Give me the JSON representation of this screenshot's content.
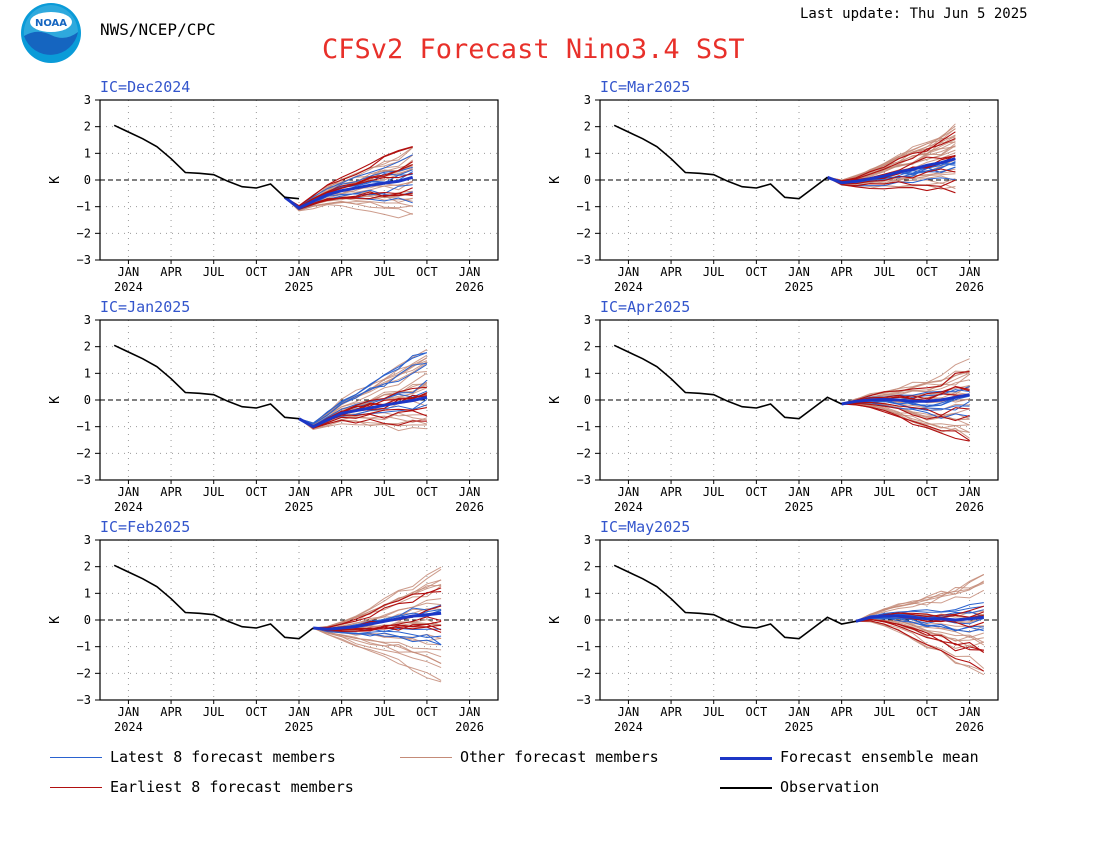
{
  "header": {
    "org": "NWS/NCEP/CPC",
    "last_update": "Last update: Thu Jun  5 2025",
    "title": "CFSv2 Forecast Nino3.4 SST",
    "logo_text": "NOAA"
  },
  "colors": {
    "latest": "#2a62cf",
    "other": "#c48b78",
    "mean": "#1c36c6",
    "earliest": "#b10f0f",
    "obs": "#000000",
    "title": "#e8302a",
    "panel_label": "#3355cc"
  },
  "legend": {
    "latest": "Latest 8 forecast members",
    "other": "Other forecast members",
    "mean": "Forecast ensemble mean",
    "earliest": "Earliest 8 forecast members",
    "obs": "Observation"
  },
  "chart_data": {
    "type": "line",
    "ylabel": "K",
    "ylim": [
      -3,
      3
    ],
    "yticks": [
      3,
      2,
      1,
      0,
      -1,
      -2,
      -3
    ],
    "xlim_months": [
      "Nov 2023",
      "Mar 2026"
    ],
    "xticks": [
      {
        "month": "Jan 2024",
        "label": "JAN",
        "year": "2024"
      },
      {
        "month": "Apr 2024",
        "label": "APR",
        "year": ""
      },
      {
        "month": "Jul 2024",
        "label": "JUL",
        "year": ""
      },
      {
        "month": "Oct 2024",
        "label": "OCT",
        "year": ""
      },
      {
        "month": "Jan 2025",
        "label": "JAN",
        "year": "2025"
      },
      {
        "month": "Apr 2025",
        "label": "APR",
        "year": ""
      },
      {
        "month": "Jul 2025",
        "label": "JUL",
        "year": ""
      },
      {
        "month": "Oct 2025",
        "label": "OCT",
        "year": ""
      },
      {
        "month": "Jan 2026",
        "label": "JAN",
        "year": "2026"
      }
    ],
    "grid": true,
    "observation": {
      "months": [
        "Dec 2023",
        "Jan 2024",
        "Feb 2024",
        "Mar 2024",
        "Apr 2024",
        "May 2024",
        "Jun 2024",
        "Jul 2024",
        "Aug 2024",
        "Sep 2024",
        "Oct 2024",
        "Nov 2024",
        "Dec 2024",
        "Jan 2025",
        "Feb 2025",
        "Mar 2025",
        "Apr 2025",
        "May 2025"
      ],
      "values": [
        2.05,
        1.8,
        1.55,
        1.25,
        0.8,
        0.28,
        0.25,
        0.2,
        -0.05,
        -0.25,
        -0.3,
        -0.15,
        -0.65,
        -0.7,
        -0.3,
        0.1,
        -0.15,
        -0.05
      ]
    },
    "panels": [
      {
        "label": "IC=Dec2024",
        "obs_end": "Jan 2025",
        "forecast_months": [
          "Dec 2024",
          "Jan 2025",
          "Feb 2025",
          "Mar 2025",
          "Apr 2025",
          "May 2025",
          "Jun 2025",
          "Jul 2025",
          "Aug 2025",
          "Sep 2025"
        ],
        "mean": [
          -0.65,
          -1.05,
          -0.8,
          -0.55,
          -0.4,
          -0.3,
          -0.2,
          -0.12,
          -0.05,
          0.1
        ],
        "members_spread_end": [
          -1.8,
          1.55
        ],
        "earliest_range": [
          -0.6,
          1.5
        ],
        "latest_range": [
          -0.8,
          1.0
        ]
      },
      {
        "label": "IC=Mar2025",
        "obs_end": "Mar 2025",
        "forecast_months": [
          "Mar 2025",
          "Apr 2025",
          "May 2025",
          "Jun 2025",
          "Jul 2025",
          "Aug 2025",
          "Sep 2025",
          "Oct 2025",
          "Nov 2025",
          "Dec 2025"
        ],
        "mean": [
          0.1,
          -0.1,
          -0.05,
          0.05,
          0.15,
          0.3,
          0.4,
          0.55,
          0.65,
          0.8
        ],
        "members_spread_end": [
          -0.6,
          2.15
        ],
        "earliest_range": [
          -0.5,
          1.8
        ],
        "latest_range": [
          -0.3,
          1.2
        ]
      },
      {
        "label": "IC=Jan2025",
        "obs_end": "Jan 2025",
        "forecast_months": [
          "Jan 2025",
          "Feb 2025",
          "Mar 2025",
          "Apr 2025",
          "May 2025",
          "Jun 2025",
          "Jul 2025",
          "Aug 2025",
          "Sep 2025",
          "Oct 2025"
        ],
        "mean": [
          -0.7,
          -1.0,
          -0.75,
          -0.5,
          -0.4,
          -0.3,
          -0.2,
          -0.1,
          -0.02,
          0.1
        ],
        "members_spread_end": [
          -1.5,
          2.05
        ],
        "earliest_range": [
          -1.4,
          0.9
        ],
        "latest_range": [
          -0.9,
          2.05
        ]
      },
      {
        "label": "IC=Apr2025",
        "obs_end": "Apr 2025",
        "forecast_months": [
          "Apr 2025",
          "May 2025",
          "Jun 2025",
          "Jul 2025",
          "Aug 2025",
          "Sep 2025",
          "Oct 2025",
          "Nov 2025",
          "Dec 2025",
          "Jan 2026"
        ],
        "mean": [
          -0.15,
          -0.05,
          0.0,
          0.02,
          0.0,
          -0.05,
          -0.05,
          0.0,
          0.1,
          0.2
        ],
        "members_spread_end": [
          -1.5,
          1.5
        ],
        "earliest_range": [
          -1.5,
          1.5
        ],
        "latest_range": [
          -0.8,
          1.0
        ]
      },
      {
        "label": "IC=Feb2025",
        "obs_end": "Feb 2025",
        "forecast_months": [
          "Feb 2025",
          "Mar 2025",
          "Apr 2025",
          "May 2025",
          "Jun 2025",
          "Jul 2025",
          "Aug 2025",
          "Sep 2025",
          "Oct 2025",
          "Nov 2025"
        ],
        "mean": [
          -0.3,
          -0.35,
          -0.3,
          -0.25,
          -0.15,
          -0.05,
          0.05,
          0.15,
          0.2,
          0.25
        ],
        "members_spread_end": [
          -2.5,
          2.3
        ],
        "earliest_range": [
          -0.5,
          1.8
        ],
        "latest_range": [
          -0.9,
          0.5
        ]
      },
      {
        "label": "IC=May2025",
        "obs_end": "May 2025",
        "forecast_months": [
          "May 2025",
          "Jun 2025",
          "Jul 2025",
          "Aug 2025",
          "Sep 2025",
          "Oct 2025",
          "Nov 2025",
          "Dec 2025",
          "Jan 2026",
          "Feb 2026"
        ],
        "mean": [
          -0.05,
          0.1,
          0.15,
          0.15,
          0.1,
          0.05,
          0.05,
          0.0,
          0.05,
          0.1
        ],
        "members_spread_end": [
          -2.05,
          1.75
        ],
        "earliest_range": [
          -2.05,
          0.7
        ],
        "latest_range": [
          -0.6,
          0.7
        ]
      }
    ]
  }
}
